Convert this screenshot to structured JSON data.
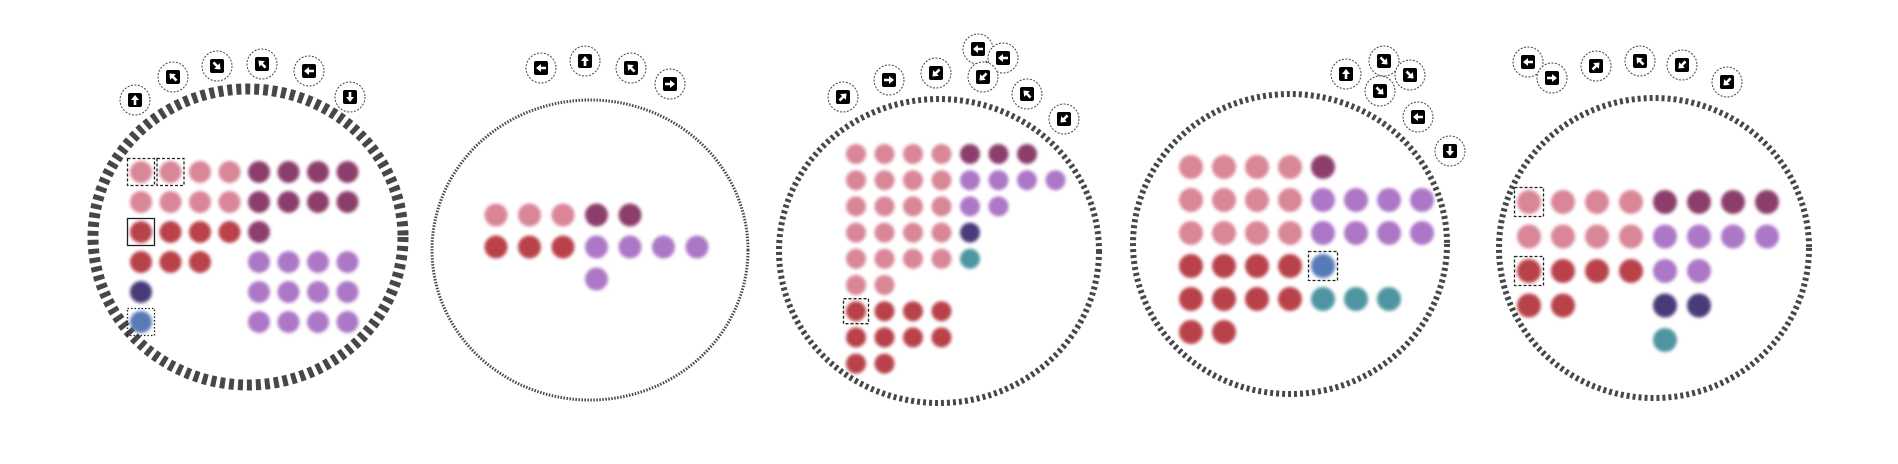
{
  "colors": {
    "pink": "#d67c8f",
    "red": "#b4333b",
    "plum": "#822f5f",
    "lavender": "#a66cc2",
    "navy": "#3b2c6e",
    "blue": "#4a6fb2",
    "teal": "#3f8d9a",
    "ring": "#333333",
    "marker": "#000000"
  },
  "panels": [
    {
      "id": "panel-1",
      "ring_style": "thick",
      "arrows": [
        "up",
        "up-left",
        "down-right",
        "up-left",
        "left",
        "down"
      ],
      "rows": [
        [
          "pink",
          "pink",
          "pink",
          "pink",
          "plum",
          "plum",
          "plum",
          "plum"
        ],
        [
          "pink",
          "pink",
          "pink",
          "pink",
          "plum",
          "plum",
          "plum",
          "plum"
        ],
        [
          "red",
          "red",
          "red",
          "red",
          "plum",
          null,
          null,
          null
        ],
        [
          "red",
          "red",
          "red",
          null,
          "lavender",
          "lavender",
          "lavender",
          "lavender"
        ],
        [
          "navy",
          null,
          null,
          null,
          "lavender",
          "lavender",
          "lavender",
          "lavender"
        ],
        [
          "blue",
          null,
          null,
          null,
          "lavender",
          "lavender",
          "lavender",
          "lavender"
        ]
      ],
      "highlights": [
        {
          "row": 0,
          "col": 0,
          "style": "dashed"
        },
        {
          "row": 0,
          "col": 1,
          "style": "dashed"
        },
        {
          "row": 2,
          "col": 0,
          "style": "solid"
        },
        {
          "row": 5,
          "col": 0,
          "style": "dotted"
        }
      ]
    },
    {
      "id": "panel-2",
      "ring_style": "thin",
      "arrows": [
        "left",
        "up",
        "up-left",
        "right"
      ],
      "rows": [
        [
          "pink",
          "pink",
          "pink",
          "plum",
          "plum",
          null,
          null
        ],
        [
          "red",
          "red",
          "red",
          "lavender",
          "lavender",
          "lavender",
          "lavender"
        ],
        [
          null,
          null,
          null,
          "lavender",
          null,
          null,
          null
        ]
      ],
      "highlights": []
    },
    {
      "id": "panel-3",
      "ring_style": "medium",
      "arrows": [
        "up-right",
        "right",
        "down-left",
        "left",
        "left",
        "down-left",
        "up-left",
        "down-left"
      ],
      "rows": [
        [
          "pink",
          "pink",
          "pink",
          "pink",
          "plum",
          "plum",
          "plum",
          null
        ],
        [
          "pink",
          "pink",
          "pink",
          "pink",
          "lavender",
          "lavender",
          "lavender",
          "lavender"
        ],
        [
          "pink",
          "pink",
          "pink",
          "pink",
          "lavender",
          "lavender",
          null,
          null
        ],
        [
          "pink",
          "pink",
          "pink",
          "pink",
          "navy",
          null,
          null,
          null
        ],
        [
          "pink",
          "pink",
          "pink",
          "pink",
          "teal",
          null,
          null,
          null
        ],
        [
          "pink",
          "pink",
          null,
          null,
          null,
          null,
          null,
          null
        ],
        [
          "red",
          "red",
          "red",
          "red",
          null,
          null,
          null,
          null
        ],
        [
          "red",
          "red",
          "red",
          "red",
          null,
          null,
          null,
          null
        ],
        [
          "red",
          "red",
          null,
          null,
          null,
          null,
          null,
          null
        ]
      ],
      "highlights": [
        {
          "row": 6,
          "col": 0,
          "style": "dashed"
        }
      ]
    },
    {
      "id": "panel-4",
      "ring_style": "medium",
      "arrows": [
        "up",
        "down-right",
        "down-right",
        "down-right",
        "left",
        "down"
      ],
      "rows": [
        [
          "pink",
          "pink",
          "pink",
          "pink",
          "plum",
          null,
          null,
          null
        ],
        [
          "pink",
          "pink",
          "pink",
          "pink",
          "lavender",
          "lavender",
          "lavender",
          "lavender"
        ],
        [
          "pink",
          "pink",
          "pink",
          "pink",
          "lavender",
          "lavender",
          "lavender",
          "lavender"
        ],
        [
          "red",
          "red",
          "red",
          "red",
          "blue",
          null,
          null,
          null
        ],
        [
          "red",
          "red",
          "red",
          "red",
          "teal",
          "teal",
          "teal",
          null
        ],
        [
          "red",
          "red",
          null,
          null,
          null,
          null,
          null,
          null
        ]
      ],
      "highlights": [
        {
          "row": 3,
          "col": 4,
          "style": "dashed"
        }
      ]
    },
    {
      "id": "panel-5",
      "ring_style": "medium",
      "arrows": [
        "left",
        "right",
        "up-right",
        "up-left",
        "down-left",
        "down-left"
      ],
      "rows": [
        [
          "pink",
          "pink",
          "pink",
          "pink",
          "plum",
          "plum",
          "plum",
          "plum"
        ],
        [
          "pink",
          "pink",
          "pink",
          "pink",
          "lavender",
          "lavender",
          "lavender",
          "lavender"
        ],
        [
          "red",
          "red",
          "red",
          "red",
          "lavender",
          "lavender",
          null,
          null
        ],
        [
          "red",
          "red",
          null,
          null,
          "navy",
          "navy",
          null,
          null
        ],
        [
          null,
          null,
          null,
          null,
          "teal",
          null,
          null,
          null
        ]
      ],
      "highlights": [
        {
          "row": 0,
          "col": 0,
          "style": "dashed"
        },
        {
          "row": 2,
          "col": 0,
          "style": "dashed"
        }
      ]
    }
  ]
}
